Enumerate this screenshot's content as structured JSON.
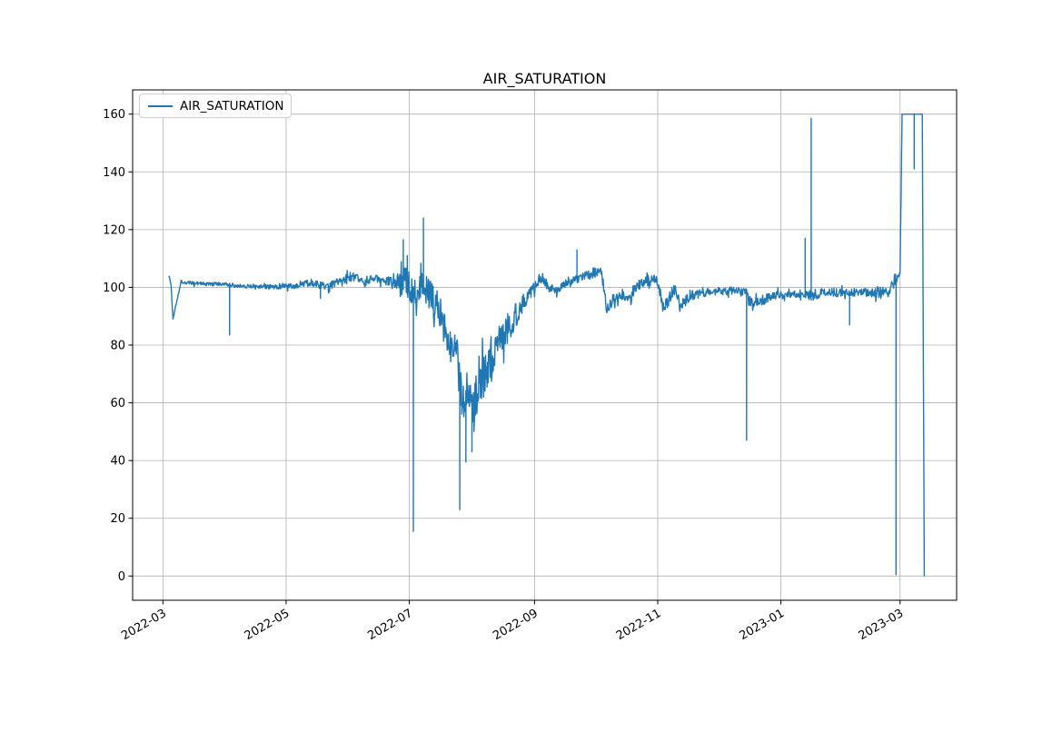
{
  "title": "AIR_SATURATION",
  "legend": {
    "label": "AIR_SATURATION",
    "position": "upper-left"
  },
  "colors": {
    "line": "#1f77b4",
    "grid": "#b0b0b0",
    "axis": "#000000",
    "text": "#000000",
    "background": "#ffffff"
  },
  "chart_data": {
    "type": "line",
    "title": "AIR_SATURATION",
    "series_name": "AIR_SATURATION",
    "grid": true,
    "legend_position": "upper-left",
    "x_axis": {
      "kind": "time",
      "min": "2022-02-14",
      "max": "2023-03-29",
      "tick_labels": [
        "2022-03",
        "2022-05",
        "2022-07",
        "2022-09",
        "2022-11",
        "2023-01",
        "2023-03"
      ],
      "label_rotation_deg": 30
    },
    "y_axis": {
      "min": -8.4,
      "max": 168.4,
      "ticks": [
        0,
        20,
        40,
        60,
        80,
        100,
        120,
        140,
        160
      ]
    },
    "sampling_days": 0.25,
    "noise_seed": 1337,
    "anchors": [
      [
        "2022-03-04",
        104,
        0.3
      ],
      [
        "2022-03-05",
        101,
        0.3
      ],
      [
        "2022-03-06",
        89,
        0.2
      ],
      [
        "2022-03-08",
        96,
        0.5
      ],
      [
        "2022-03-10",
        102,
        0.6
      ],
      [
        "2022-03-14",
        101.5,
        0.7
      ],
      [
        "2022-03-22",
        101.2,
        0.7
      ],
      [
        "2022-03-30",
        101,
        0.7
      ],
      [
        "2022-04-08",
        100.6,
        0.7
      ],
      [
        "2022-04-16",
        100.3,
        0.8
      ],
      [
        "2022-04-24",
        100.2,
        0.8
      ],
      [
        "2022-05-02",
        100.3,
        0.9
      ],
      [
        "2022-05-08",
        100.6,
        1.0
      ],
      [
        "2022-05-13",
        101.8,
        1.3
      ],
      [
        "2022-05-16",
        101.2,
        1.2
      ],
      [
        "2022-05-20",
        100.3,
        1.3
      ],
      [
        "2022-05-24",
        101,
        1.4
      ],
      [
        "2022-05-28",
        102,
        1.8
      ],
      [
        "2022-06-01",
        103.5,
        2.0
      ],
      [
        "2022-06-04",
        103,
        1.8
      ],
      [
        "2022-06-08",
        102.3,
        1.4
      ],
      [
        "2022-06-12",
        102.8,
        1.4
      ],
      [
        "2022-06-16",
        102.8,
        1.5
      ],
      [
        "2022-06-20",
        102,
        1.8
      ],
      [
        "2022-06-24",
        101.5,
        2.4
      ],
      [
        "2022-06-27",
        101.5,
        4.5
      ],
      [
        "2022-06-29",
        102,
        6.5
      ],
      [
        "2022-07-01",
        100.5,
        6
      ],
      [
        "2022-07-04",
        100,
        5.5
      ],
      [
        "2022-07-07",
        100.5,
        5.5
      ],
      [
        "2022-07-10",
        99,
        5.5
      ],
      [
        "2022-07-12",
        97,
        5.5
      ],
      [
        "2022-07-14",
        94,
        6
      ],
      [
        "2022-07-16",
        91,
        6.5
      ],
      [
        "2022-07-18",
        88,
        7
      ],
      [
        "2022-07-20",
        84.5,
        7.5
      ],
      [
        "2022-07-22",
        80.5,
        8
      ],
      [
        "2022-07-24",
        75,
        9
      ],
      [
        "2022-07-26",
        68,
        10
      ],
      [
        "2022-07-28",
        63,
        10
      ],
      [
        "2022-07-30",
        60,
        10
      ],
      [
        "2022-08-01",
        59,
        10
      ],
      [
        "2022-08-03",
        60,
        10
      ],
      [
        "2022-08-05",
        63,
        10
      ],
      [
        "2022-08-07",
        67,
        9
      ],
      [
        "2022-08-09",
        73,
        8
      ],
      [
        "2022-08-11",
        77,
        7
      ],
      [
        "2022-08-13",
        80,
        6.5
      ],
      [
        "2022-08-15",
        82,
        6
      ],
      [
        "2022-08-17",
        84,
        6
      ],
      [
        "2022-08-19",
        86,
        5.5
      ],
      [
        "2022-08-21",
        88,
        5
      ],
      [
        "2022-08-23",
        91,
        4.5
      ],
      [
        "2022-08-25",
        93.5,
        4
      ],
      [
        "2022-08-27",
        95.5,
        3.5
      ],
      [
        "2022-08-29",
        97.5,
        3
      ],
      [
        "2022-08-31",
        100,
        2.5
      ],
      [
        "2022-09-02",
        102,
        2
      ],
      [
        "2022-09-04",
        103.5,
        1.8
      ],
      [
        "2022-09-06",
        102.5,
        1.8
      ],
      [
        "2022-09-08",
        100.5,
        1.8
      ],
      [
        "2022-09-10",
        99,
        1.8
      ],
      [
        "2022-09-12",
        98.8,
        1.6
      ],
      [
        "2022-09-14",
        100.3,
        1.4
      ],
      [
        "2022-09-16",
        101.3,
        1.3
      ],
      [
        "2022-09-19",
        102,
        1.3
      ],
      [
        "2022-09-22",
        102.8,
        1.4
      ],
      [
        "2022-09-25",
        103.5,
        1.5
      ],
      [
        "2022-09-28",
        104.3,
        1.7
      ],
      [
        "2022-09-30",
        104.8,
        1.9
      ],
      [
        "2022-10-02",
        105.5,
        2.0
      ],
      [
        "2022-10-04",
        105,
        2.5
      ],
      [
        "2022-10-05",
        101,
        3
      ],
      [
        "2022-10-06",
        95,
        3
      ],
      [
        "2022-10-07",
        92.5,
        2.5
      ],
      [
        "2022-10-09",
        95,
        2.5
      ],
      [
        "2022-10-12",
        97.3,
        2
      ],
      [
        "2022-10-15",
        97.5,
        2
      ],
      [
        "2022-10-17",
        96.8,
        2.2
      ],
      [
        "2022-10-18",
        95.5,
        2.2
      ],
      [
        "2022-10-20",
        98.5,
        2.2
      ],
      [
        "2022-10-22",
        100.5,
        2
      ],
      [
        "2022-10-24",
        101,
        2
      ],
      [
        "2022-10-26",
        102,
        2
      ],
      [
        "2022-10-29",
        102.5,
        2
      ],
      [
        "2022-11-01",
        102,
        2.2
      ],
      [
        "2022-11-03",
        94.5,
        2.5
      ],
      [
        "2022-11-04",
        92.8,
        2
      ],
      [
        "2022-11-06",
        95.5,
        2.5
      ],
      [
        "2022-11-08",
        98.5,
        2.2
      ],
      [
        "2022-11-10",
        98.8,
        2
      ],
      [
        "2022-11-12",
        93.8,
        2.2
      ],
      [
        "2022-11-14",
        94.5,
        2.2
      ],
      [
        "2022-11-16",
        96.5,
        2
      ],
      [
        "2022-11-19",
        97.3,
        1.8
      ],
      [
        "2022-11-23",
        98,
        1.6
      ],
      [
        "2022-11-28",
        98.5,
        1.5
      ],
      [
        "2022-12-03",
        98.7,
        1.4
      ],
      [
        "2022-12-08",
        98.8,
        1.4
      ],
      [
        "2022-12-13",
        98.5,
        1.2
      ],
      [
        "2022-12-15",
        98.8,
        1.0
      ],
      [
        "2022-12-16",
        95.5,
        1.8
      ],
      [
        "2022-12-18",
        94.3,
        1.8
      ],
      [
        "2022-12-20",
        94.5,
        1.8
      ],
      [
        "2022-12-23",
        95.5,
        1.8
      ],
      [
        "2022-12-26",
        96.5,
        1.6
      ],
      [
        "2022-12-30",
        97.2,
        1.5
      ],
      [
        "2023-01-03",
        97.6,
        1.4
      ],
      [
        "2023-01-07",
        98,
        1.4
      ],
      [
        "2023-01-10",
        97.7,
        1.4
      ],
      [
        "2023-01-13",
        98,
        1.5
      ],
      [
        "2023-01-14",
        96.3,
        2.3
      ],
      [
        "2023-01-16",
        96.8,
        2.3
      ],
      [
        "2023-01-18",
        97.5,
        1.9
      ],
      [
        "2023-01-22",
        98.1,
        1.5
      ],
      [
        "2023-01-26",
        98.4,
        1.4
      ],
      [
        "2023-01-30",
        98.1,
        1.4
      ],
      [
        "2023-02-03",
        98.4,
        1.3
      ],
      [
        "2023-02-07",
        98,
        1.5
      ],
      [
        "2023-02-11",
        98.4,
        1.5
      ],
      [
        "2023-02-15",
        98,
        1.7
      ],
      [
        "2023-02-18",
        98.4,
        1.9
      ],
      [
        "2023-02-21",
        98,
        2.1
      ],
      [
        "2023-02-24",
        99.2,
        2.2
      ],
      [
        "2023-02-26",
        101.5,
        1.6
      ],
      [
        "2023-02-28",
        103.5,
        1.2
      ],
      [
        "2023-03-01",
        105,
        0.8
      ],
      [
        "2023-03-02",
        160,
        0
      ],
      [
        "2023-03-12",
        160,
        0
      ],
      [
        "2023-03-13",
        0,
        0
      ]
    ],
    "spikes": [
      [
        "2022-04-03",
        83.5
      ],
      [
        "2022-05-18",
        96.2
      ],
      [
        "2022-06-28",
        116.5
      ],
      [
        "2022-06-30",
        111
      ],
      [
        "2022-07-03",
        15.5
      ],
      [
        "2022-07-08",
        124
      ],
      [
        "2022-07-26",
        23
      ],
      [
        "2022-07-29",
        39.5
      ],
      [
        "2022-08-01",
        43
      ],
      [
        "2022-09-22",
        113
      ],
      [
        "2022-12-15",
        47
      ],
      [
        "2023-01-13",
        117
      ],
      [
        "2023-01-16",
        158.5
      ],
      [
        "2023-02-04",
        87
      ],
      [
        "2023-02-27",
        0.5
      ],
      [
        "2023-03-08",
        141
      ]
    ]
  }
}
